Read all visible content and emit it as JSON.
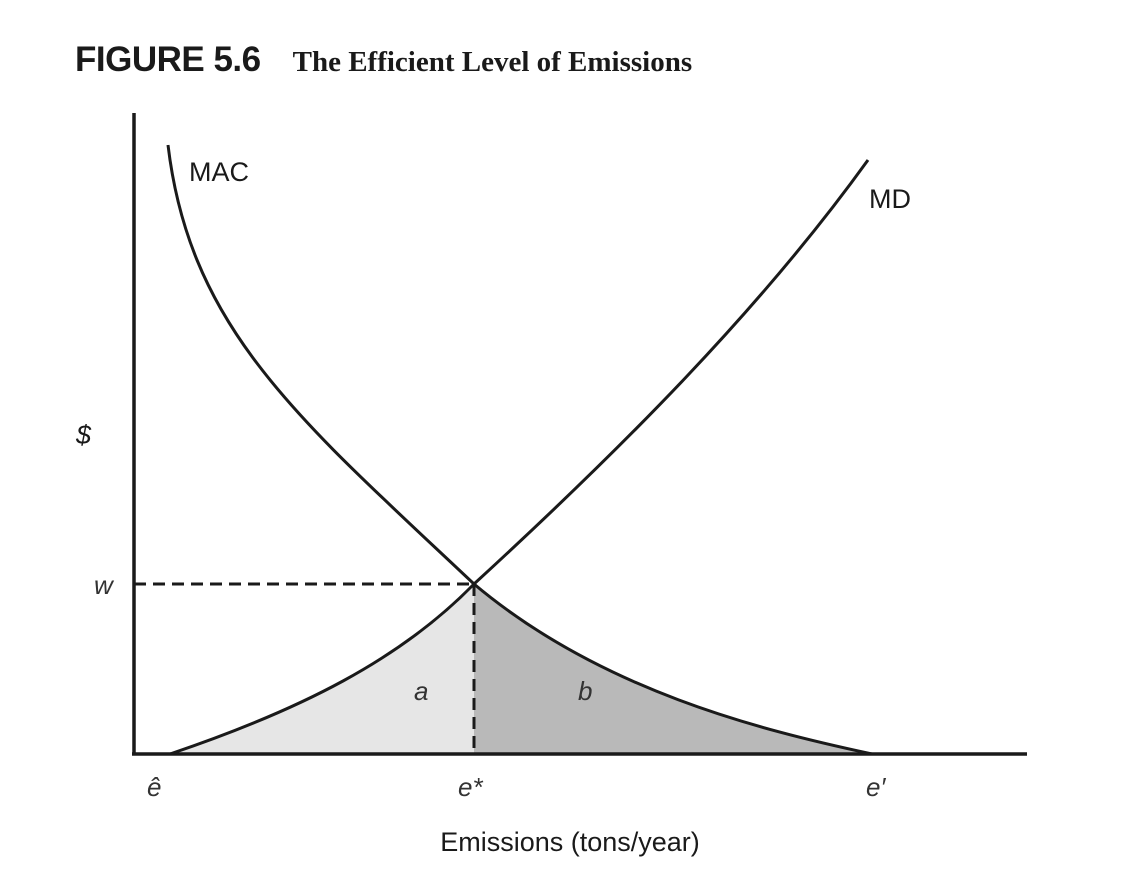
{
  "figure": {
    "number": "FIGURE 5.6",
    "title": "The Efficient Level of Emissions"
  },
  "chart_data": {
    "type": "line",
    "ylabel": "$",
    "xlabel": "Emissions (tons/year)",
    "x_ticks": [
      "ê",
      "e*",
      "e′"
    ],
    "y_ticks": [
      "w"
    ],
    "series": [
      {
        "name": "MAC",
        "points": [
          [
            "ê",
            "high"
          ],
          [
            "e*",
            "w"
          ],
          [
            "e′",
            0
          ]
        ]
      },
      {
        "name": "MD",
        "points": [
          [
            "ê",
            0
          ],
          [
            "e*",
            "w"
          ],
          [
            "end",
            "high"
          ]
        ]
      }
    ],
    "areas": [
      {
        "label": "a",
        "between": [
          "ê",
          "e*"
        ],
        "under": "MD",
        "color": "#e6e6e6"
      },
      {
        "label": "b",
        "between": [
          "e*",
          "e′"
        ],
        "under": "MAC",
        "color": "#b9b9b9"
      }
    ],
    "guides": [
      "horizontal dashed line at w",
      "vertical dashed line at e*"
    ],
    "grid": false,
    "legend": "none"
  }
}
